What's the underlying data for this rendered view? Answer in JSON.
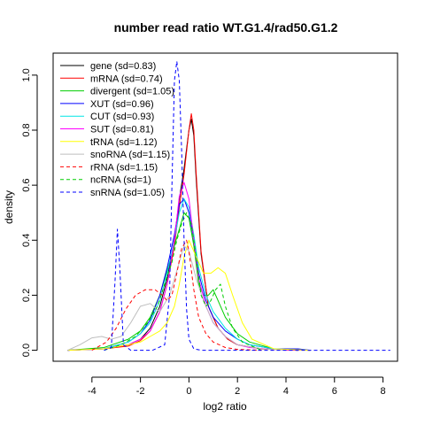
{
  "chart_data": {
    "type": "line",
    "title": "number read ratio WT.G1.4/rad50.G1.2",
    "xlabel": "log2 ratio",
    "ylabel": "density",
    "xlim": [
      -5.6,
      8.6
    ],
    "ylim": [
      -0.04,
      1.08
    ],
    "xticks": [
      -4,
      -2,
      0,
      2,
      4,
      6,
      8
    ],
    "yticks": [
      0.0,
      0.2,
      0.4,
      0.6,
      0.8,
      1.0
    ],
    "ytick_labels": [
      "0.0",
      "0.2",
      "0.4",
      "0.6",
      "0.8",
      "1.0"
    ],
    "grid": false,
    "legend_position": "top-left",
    "series": [
      {
        "name": "gene (sd=0.83)",
        "color": "#000000",
        "dash": "solid",
        "x": [
          -5.0,
          -3.5,
          -2.5,
          -2.0,
          -1.6,
          -1.2,
          -0.9,
          -0.6,
          -0.4,
          -0.2,
          0.0,
          0.1,
          0.2,
          0.3,
          0.5,
          0.8,
          1.2,
          1.6,
          2.0,
          3.0,
          4.5
        ],
        "y": [
          0.0,
          0.005,
          0.02,
          0.04,
          0.08,
          0.16,
          0.26,
          0.4,
          0.55,
          0.66,
          0.8,
          0.84,
          0.78,
          0.62,
          0.35,
          0.16,
          0.08,
          0.04,
          0.02,
          0.005,
          0.0
        ]
      },
      {
        "name": "mRNA (sd=0.74)",
        "color": "#ff0000",
        "dash": "solid",
        "x": [
          -5.0,
          -3.5,
          -2.5,
          -2.0,
          -1.6,
          -1.2,
          -0.9,
          -0.6,
          -0.4,
          -0.2,
          0.0,
          0.1,
          0.2,
          0.3,
          0.5,
          0.8,
          1.2,
          1.6,
          2.0,
          3.0,
          4.5
        ],
        "y": [
          0.0,
          0.005,
          0.015,
          0.035,
          0.07,
          0.14,
          0.24,
          0.38,
          0.52,
          0.64,
          0.8,
          0.86,
          0.8,
          0.64,
          0.36,
          0.16,
          0.08,
          0.04,
          0.02,
          0.004,
          0.0
        ]
      },
      {
        "name": "divergent (sd=1.05)",
        "color": "#00cd00",
        "dash": "solid",
        "x": [
          -5.0,
          -3.5,
          -2.5,
          -2.0,
          -1.6,
          -1.2,
          -0.8,
          -0.4,
          -0.2,
          0.0,
          0.2,
          0.4,
          0.6,
          0.8,
          1.0,
          1.2,
          1.5,
          2.0,
          2.5,
          3.5,
          5.0
        ],
        "y": [
          0.0,
          0.01,
          0.04,
          0.07,
          0.12,
          0.2,
          0.32,
          0.44,
          0.5,
          0.48,
          0.38,
          0.24,
          0.2,
          0.2,
          0.22,
          0.18,
          0.12,
          0.06,
          0.03,
          0.005,
          0.0
        ]
      },
      {
        "name": "XUT (sd=0.96)",
        "color": "#0000ff",
        "dash": "solid",
        "x": [
          -5.0,
          -3.5,
          -2.5,
          -2.0,
          -1.6,
          -1.2,
          -0.9,
          -0.6,
          -0.4,
          -0.2,
          0.0,
          0.2,
          0.4,
          0.7,
          1.0,
          1.5,
          2.0,
          2.5,
          3.5,
          4.5,
          5.0
        ],
        "y": [
          0.0,
          0.005,
          0.03,
          0.06,
          0.11,
          0.2,
          0.3,
          0.42,
          0.53,
          0.55,
          0.5,
          0.4,
          0.28,
          0.18,
          0.12,
          0.07,
          0.04,
          0.02,
          0.005,
          0.005,
          0.0
        ]
      },
      {
        "name": "CUT (sd=0.93)",
        "color": "#00e5e5",
        "dash": "solid",
        "x": [
          -5.0,
          -3.5,
          -2.5,
          -2.0,
          -1.6,
          -1.2,
          -0.9,
          -0.6,
          -0.4,
          -0.2,
          0.0,
          0.2,
          0.4,
          0.7,
          1.0,
          1.5,
          2.0,
          2.5,
          3.5,
          5.0
        ],
        "y": [
          0.0,
          0.005,
          0.03,
          0.06,
          0.1,
          0.18,
          0.28,
          0.4,
          0.5,
          0.55,
          0.52,
          0.42,
          0.3,
          0.2,
          0.14,
          0.08,
          0.04,
          0.02,
          0.005,
          0.0
        ]
      },
      {
        "name": "SUT (sd=0.81)",
        "color": "#ff00ff",
        "dash": "solid",
        "x": [
          -5.0,
          -3.5,
          -2.5,
          -2.0,
          -1.6,
          -1.2,
          -0.9,
          -0.6,
          -0.4,
          -0.2,
          0.0,
          0.2,
          0.4,
          0.7,
          1.0,
          1.5,
          2.0,
          2.5,
          3.5,
          5.0
        ],
        "y": [
          0.0,
          0.005,
          0.02,
          0.04,
          0.07,
          0.14,
          0.24,
          0.4,
          0.56,
          0.61,
          0.55,
          0.4,
          0.26,
          0.16,
          0.1,
          0.05,
          0.02,
          0.01,
          0.002,
          0.0
        ]
      },
      {
        "name": "tRNA (sd=1.12)",
        "color": "#ffff00",
        "dash": "solid",
        "x": [
          -5.0,
          -3.5,
          -2.5,
          -2.0,
          -1.6,
          -1.2,
          -0.9,
          -0.6,
          -0.4,
          -0.2,
          0.0,
          0.3,
          0.6,
          0.9,
          1.2,
          1.5,
          1.8,
          2.2,
          2.6,
          3.5,
          5.0
        ],
        "y": [
          0.0,
          0.005,
          0.02,
          0.03,
          0.05,
          0.07,
          0.1,
          0.16,
          0.24,
          0.34,
          0.4,
          0.34,
          0.28,
          0.28,
          0.3,
          0.28,
          0.2,
          0.1,
          0.04,
          0.005,
          0.0
        ]
      },
      {
        "name": "snoRNA (sd=1.15)",
        "color": "#bebebe",
        "dash": "solid",
        "x": [
          -5.0,
          -4.5,
          -4.0,
          -3.6,
          -3.2,
          -2.8,
          -2.4,
          -2.0,
          -1.6,
          -1.2,
          -0.8,
          -0.4,
          -0.2,
          0.0,
          0.3,
          0.6,
          1.0,
          1.5,
          2.0,
          3.0,
          4.0
        ],
        "y": [
          0.0,
          0.02,
          0.045,
          0.05,
          0.04,
          0.05,
          0.1,
          0.16,
          0.17,
          0.14,
          0.2,
          0.32,
          0.38,
          0.36,
          0.26,
          0.18,
          0.1,
          0.05,
          0.02,
          0.005,
          0.0
        ]
      },
      {
        "name": "rRNA (sd=1.15)",
        "color": "#ff0000",
        "dash": "dashed",
        "x": [
          -4.0,
          -3.4,
          -3.0,
          -2.6,
          -2.2,
          -1.8,
          -1.4,
          -1.1,
          -0.9,
          -0.7,
          -0.5,
          -0.3,
          -0.1,
          0.0,
          0.2,
          0.4,
          0.7,
          1.0,
          1.5,
          2.0,
          3.0
        ],
        "y": [
          0.0,
          0.03,
          0.08,
          0.15,
          0.2,
          0.22,
          0.22,
          0.2,
          0.18,
          0.2,
          0.28,
          0.37,
          0.4,
          0.36,
          0.22,
          0.12,
          0.06,
          0.03,
          0.01,
          0.003,
          0.0
        ]
      },
      {
        "name": "ncRNA (sd=1)",
        "color": "#00cd00",
        "dash": "dashed",
        "x": [
          -3.5,
          -2.8,
          -2.2,
          -1.7,
          -1.3,
          -1.0,
          -0.7,
          -0.5,
          -0.3,
          -0.1,
          0.1,
          0.3,
          0.5,
          0.7,
          0.9,
          1.1,
          1.3,
          1.5,
          1.8,
          2.2,
          3.0
        ],
        "y": [
          0.0,
          0.02,
          0.05,
          0.1,
          0.16,
          0.24,
          0.32,
          0.4,
          0.46,
          0.5,
          0.46,
          0.34,
          0.2,
          0.16,
          0.18,
          0.22,
          0.24,
          0.16,
          0.08,
          0.03,
          0.0
        ]
      },
      {
        "name": "snRNA (sd=1.05)",
        "color": "#0000ff",
        "dash": "dashed",
        "x": [
          -3.5,
          -3.2,
          -3.05,
          -2.95,
          -2.85,
          -2.7,
          -2.4,
          -1.5,
          -1.0,
          -0.8,
          -0.7,
          -0.6,
          -0.5,
          -0.4,
          -0.3,
          -0.2,
          -0.1,
          0.0,
          0.2,
          0.5,
          1.5,
          8.3
        ],
        "y": [
          0.0,
          0.01,
          0.25,
          0.44,
          0.3,
          0.02,
          0.0,
          0.0,
          0.02,
          0.2,
          0.6,
          0.98,
          1.05,
          0.98,
          0.72,
          0.4,
          0.15,
          0.04,
          0.005,
          0.0,
          0.0,
          0.0
        ]
      }
    ]
  }
}
